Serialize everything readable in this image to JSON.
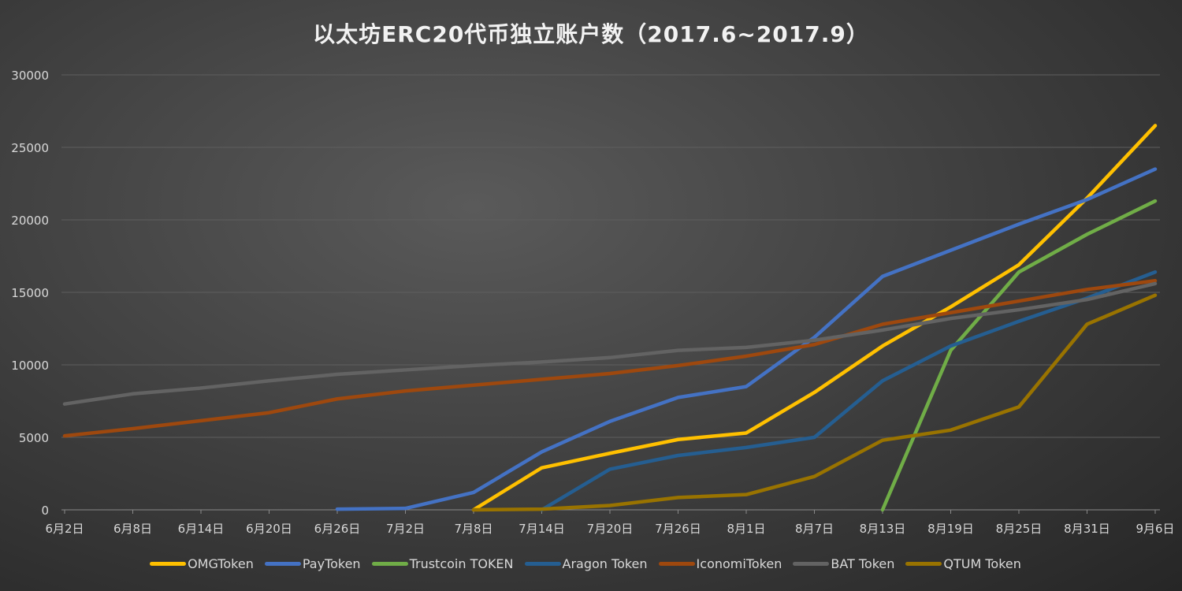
{
  "chart_data": {
    "type": "line",
    "title": "以太坊ERC20代币独立账户数（2017.6~2017.9）",
    "xlabel": "",
    "ylabel": "",
    "ylim": [
      0,
      30000
    ],
    "yticks": [
      0,
      5000,
      10000,
      15000,
      20000,
      25000,
      30000
    ],
    "grid": true,
    "legend": "bottom",
    "categories": [
      "6月2日",
      "6月8日",
      "6月14日",
      "6月20日",
      "6月26日",
      "7月2日",
      "7月8日",
      "7月14日",
      "7月20日",
      "7月26日",
      "8月1日",
      "8月7日",
      "8月13日",
      "8月19日",
      "8月25日",
      "8月31日",
      "9月6日"
    ],
    "series": [
      {
        "name": "OMGToken",
        "color": "#FFC000",
        "values": [
          null,
          null,
          null,
          null,
          null,
          null,
          0,
          2900,
          3900,
          4850,
          5300,
          8100,
          11300,
          14000,
          16900,
          21500,
          26500
        ]
      },
      {
        "name": "PayToken",
        "color": "#4472C4",
        "values": [
          null,
          null,
          null,
          null,
          50,
          100,
          1200,
          4000,
          6100,
          7750,
          8500,
          11900,
          16100,
          17900,
          19700,
          21400,
          23500
        ]
      },
      {
        "name": "Trustcoin TOKEN",
        "color": "#70AD47",
        "values": [
          null,
          null,
          null,
          null,
          null,
          null,
          null,
          null,
          null,
          null,
          null,
          null,
          0,
          11000,
          16400,
          19000,
          21300
        ]
      },
      {
        "name": "Aragon Token",
        "color": "#255E91",
        "values": [
          null,
          null,
          null,
          null,
          null,
          null,
          null,
          0,
          2800,
          3750,
          4300,
          5000,
          8900,
          11300,
          13000,
          14600,
          16400
        ]
      },
      {
        "name": "IconomiToken",
        "color": "#9E480E",
        "values": [
          5100,
          5600,
          6150,
          6700,
          7650,
          8200,
          8600,
          9000,
          9400,
          9950,
          10600,
          11400,
          12800,
          13600,
          14400,
          15200,
          15800
        ]
      },
      {
        "name": "BAT Token",
        "color": "#636363",
        "values": [
          7300,
          8000,
          8400,
          8900,
          9350,
          9650,
          9950,
          10200,
          10500,
          11000,
          11200,
          11700,
          12400,
          13200,
          13800,
          14500,
          15600
        ]
      },
      {
        "name": "QTUM Token",
        "color": "#997300",
        "values": [
          null,
          null,
          null,
          null,
          null,
          null,
          0,
          50,
          300,
          850,
          1050,
          2300,
          4800,
          5500,
          7100,
          12800,
          14800
        ]
      }
    ]
  }
}
